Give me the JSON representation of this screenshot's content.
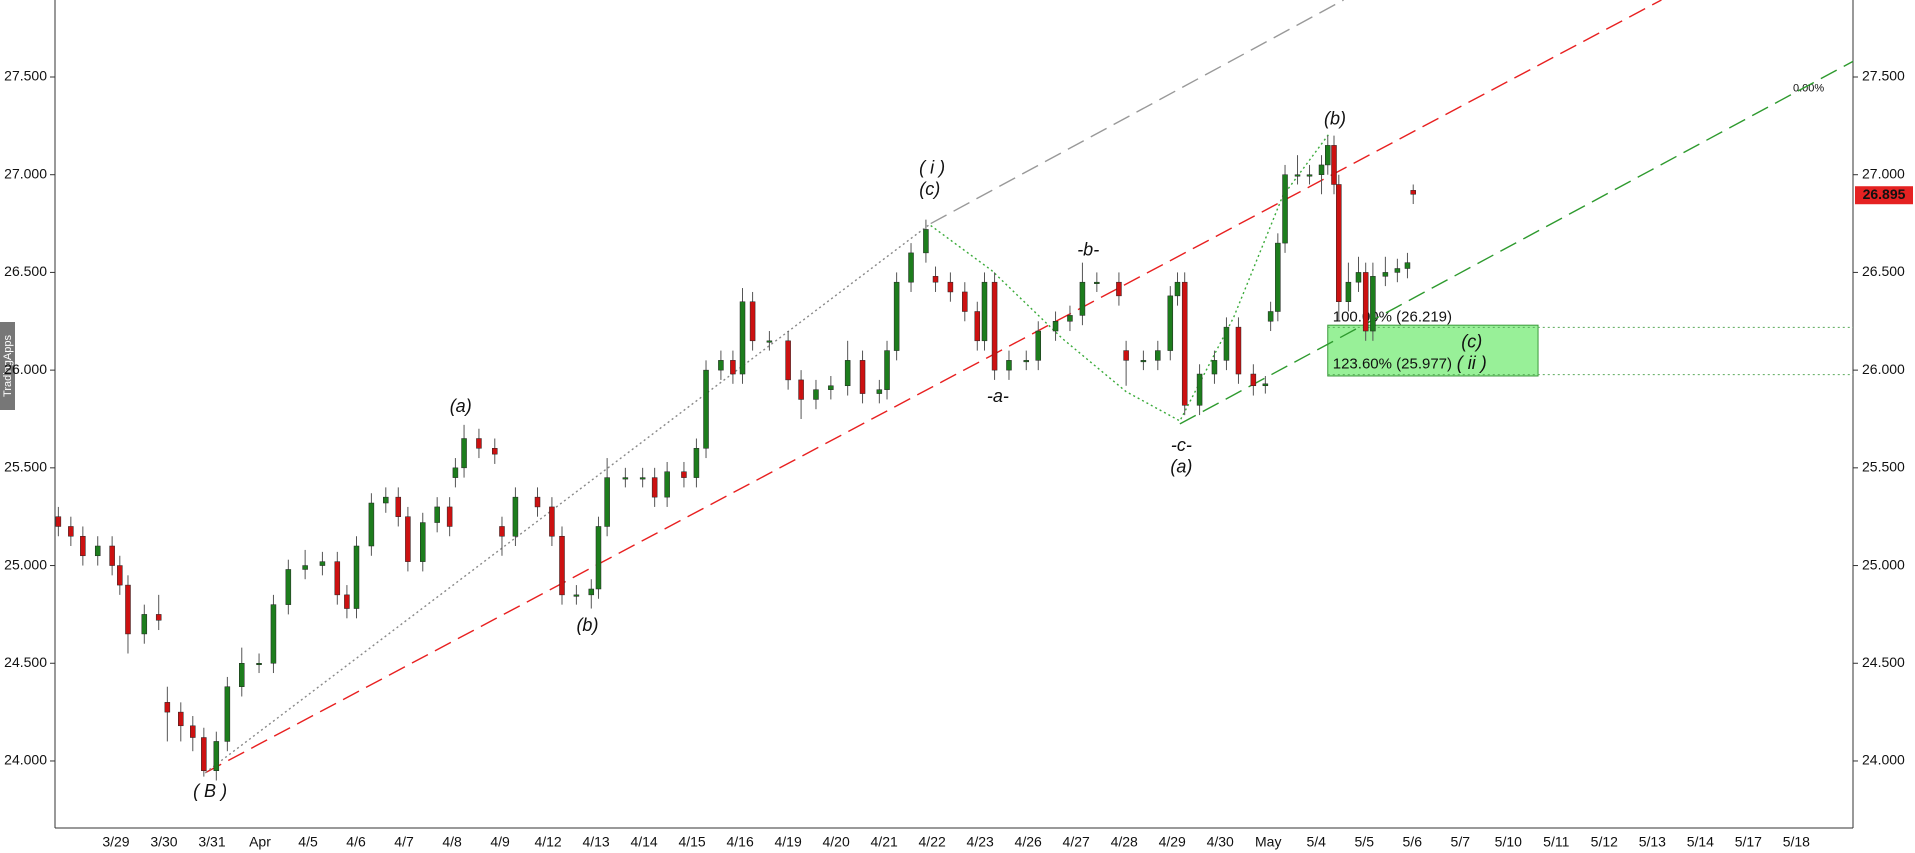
{
  "chart_data": {
    "type": "candlestick",
    "watermark": "TradingApps",
    "categories": [
      "3/29",
      "3/30",
      "3/31",
      "Apr",
      "4/5",
      "4/6",
      "4/7",
      "4/8",
      "4/9",
      "4/12",
      "4/13",
      "4/14",
      "4/15",
      "4/16",
      "4/19",
      "4/20",
      "4/21",
      "4/22",
      "4/23",
      "4/26",
      "4/27",
      "4/28",
      "4/29",
      "4/30",
      "May",
      "5/4",
      "5/5",
      "5/6",
      "5/7",
      "5/10",
      "5/11",
      "5/12",
      "5/13",
      "5/14",
      "5/17",
      "5/18"
    ],
    "xlim": [
      -1.27,
      36.18
    ],
    "ylim": [
      23.657,
      27.894
    ],
    "yticks": [
      {
        "value": 24,
        "label": "24.000"
      },
      {
        "value": 24.5,
        "label": "24.500"
      },
      {
        "value": 25,
        "label": "25.000"
      },
      {
        "value": 25.5,
        "label": "25.500"
      },
      {
        "value": 26,
        "label": "26.000"
      },
      {
        "value": 26.5,
        "label": "26.500"
      },
      {
        "value": 27,
        "label": "27.000"
      },
      {
        "value": 27.5,
        "label": "27.500"
      }
    ],
    "candles": {
      "up_color": "#1d7d1d",
      "down_color": "#cc1111",
      "wick_color": "#555555",
      "x": [
        -1.2,
        -0.94,
        -0.69,
        -0.38,
        -0.08,
        0.08,
        0.25,
        0.59,
        0.89,
        1.07,
        1.35,
        1.6,
        1.83,
        2.09,
        2.32,
        2.62,
        2.98,
        3.28,
        3.59,
        3.94,
        4.3,
        4.61,
        4.81,
        5.01,
        5.32,
        5.62,
        5.88,
        6.08,
        6.39,
        6.69,
        6.95,
        7.07,
        7.25,
        7.56,
        7.89,
        8.04,
        8.32,
        8.78,
        9.08,
        9.29,
        9.59,
        9.9,
        10.05,
        10.23,
        10.61,
        10.97,
        11.22,
        11.48,
        11.83,
        12.09,
        12.29,
        12.6,
        12.85,
        13.05,
        13.26,
        13.61,
        14.0,
        14.27,
        14.58,
        14.89,
        15.24,
        15.55,
        15.9,
        16.06,
        16.26,
        16.56,
        16.87,
        17.07,
        17.38,
        17.68,
        17.94,
        18.09,
        18.3,
        18.6,
        18.96,
        19.21,
        19.57,
        19.87,
        20.13,
        20.43,
        20.89,
        21.04,
        21.4,
        21.7,
        21.96,
        22.11,
        22.26,
        22.57,
        22.88,
        23.13,
        23.38,
        23.69,
        23.94,
        24.05,
        24.2,
        24.35,
        24.61,
        24.86,
        25.11,
        25.24,
        25.37,
        25.47,
        25.67,
        25.88,
        26.03,
        26.18,
        26.44,
        26.69,
        26.9,
        27.02
      ],
      "open": [
        25.25,
        25.2,
        25.15,
        25.05,
        25.1,
        25.0,
        24.9,
        24.65,
        24.75,
        24.3,
        24.25,
        24.18,
        24.12,
        23.95,
        24.1,
        24.38,
        24.5,
        24.5,
        24.8,
        24.98,
        25.0,
        25.02,
        24.85,
        24.78,
        25.1,
        25.32,
        25.35,
        25.25,
        25.02,
        25.22,
        25.3,
        25.45,
        25.5,
        25.65,
        25.6,
        25.2,
        25.15,
        25.35,
        25.3,
        25.15,
        24.85,
        24.85,
        24.88,
        25.2,
        25.45,
        25.45,
        25.45,
        25.35,
        25.48,
        25.45,
        25.6,
        26.0,
        26.05,
        25.98,
        26.35,
        26.15,
        26.15,
        25.95,
        25.85,
        25.9,
        25.92,
        26.05,
        25.88,
        25.9,
        26.1,
        26.45,
        26.6,
        26.48,
        26.45,
        26.4,
        26.3,
        26.15,
        26.45,
        26.0,
        26.05,
        26.05,
        26.2,
        26.25,
        26.28,
        26.45,
        26.45,
        26.1,
        26.05,
        26.05,
        26.1,
        26.38,
        26.45,
        25.82,
        25.98,
        26.05,
        26.22,
        25.98,
        25.92,
        26.25,
        26.3,
        26.65,
        27.0,
        27.0,
        27.0,
        27.05,
        27.15,
        26.95,
        26.35,
        26.45,
        26.5,
        26.2,
        26.48,
        26.5,
        26.52,
        26.92
      ],
      "high": [
        25.3,
        25.25,
        25.2,
        25.15,
        25.15,
        25.05,
        24.95,
        24.8,
        24.85,
        24.38,
        24.3,
        24.23,
        24.17,
        24.15,
        24.43,
        24.58,
        24.55,
        24.85,
        25.03,
        25.08,
        25.07,
        25.07,
        24.9,
        25.15,
        25.37,
        25.4,
        25.4,
        25.3,
        25.27,
        25.35,
        25.35,
        25.55,
        25.72,
        25.7,
        25.65,
        25.25,
        25.4,
        25.4,
        25.35,
        25.2,
        24.9,
        24.93,
        25.25,
        25.55,
        25.5,
        25.5,
        25.5,
        25.53,
        25.53,
        25.65,
        26.05,
        26.1,
        26.1,
        26.42,
        26.4,
        26.2,
        26.2,
        26.0,
        25.95,
        25.97,
        26.15,
        26.1,
        25.95,
        26.15,
        26.5,
        26.65,
        26.77,
        26.53,
        26.5,
        26.45,
        26.35,
        26.5,
        26.5,
        26.1,
        26.1,
        26.25,
        26.3,
        26.33,
        26.55,
        26.5,
        26.5,
        26.15,
        26.1,
        26.15,
        26.43,
        26.5,
        26.5,
        26.03,
        26.1,
        26.27,
        26.27,
        26.03,
        25.97,
        26.35,
        26.7,
        27.05,
        27.1,
        27.05,
        27.1,
        27.2,
        27.2,
        27.0,
        26.55,
        26.58,
        26.55,
        26.55,
        26.58,
        26.57,
        26.6,
        26.95
      ],
      "low": [
        25.15,
        25.1,
        25.0,
        25.0,
        24.95,
        24.85,
        24.55,
        24.6,
        24.67,
        24.1,
        24.1,
        24.05,
        23.92,
        23.9,
        24.05,
        24.33,
        24.45,
        24.45,
        24.75,
        24.93,
        24.95,
        24.8,
        24.73,
        24.73,
        25.05,
        25.27,
        25.2,
        24.97,
        24.97,
        25.17,
        25.15,
        25.4,
        25.45,
        25.55,
        25.52,
        25.05,
        25.1,
        25.25,
        25.1,
        24.8,
        24.8,
        24.78,
        24.83,
        25.15,
        25.4,
        25.4,
        25.3,
        25.3,
        25.4,
        25.4,
        25.55,
        25.95,
        25.93,
        25.93,
        26.1,
        26.1,
        25.9,
        25.75,
        25.8,
        25.85,
        25.87,
        25.83,
        25.83,
        25.85,
        26.05,
        26.4,
        26.55,
        26.4,
        26.35,
        26.25,
        26.1,
        26.1,
        25.95,
        25.95,
        26.0,
        26.0,
        26.15,
        26.2,
        26.23,
        26.4,
        26.33,
        25.92,
        26.0,
        26.0,
        26.05,
        26.33,
        25.77,
        25.77,
        25.93,
        26.0,
        25.93,
        25.87,
        25.88,
        26.2,
        26.25,
        26.6,
        26.95,
        26.95,
        26.9,
        27.0,
        26.9,
        26.25,
        26.3,
        26.4,
        26.15,
        26.15,
        26.43,
        26.45,
        26.47,
        26.85
      ],
      "close": [
        25.2,
        25.15,
        25.05,
        25.1,
        25.0,
        24.9,
        24.65,
        24.75,
        24.72,
        24.25,
        24.18,
        24.12,
        23.95,
        24.1,
        24.38,
        24.5,
        24.5,
        24.8,
        24.98,
        25.0,
        25.02,
        24.85,
        24.78,
        25.1,
        25.32,
        25.35,
        25.25,
        25.02,
        25.22,
        25.3,
        25.2,
        25.5,
        25.65,
        25.6,
        25.57,
        25.15,
        25.35,
        25.3,
        25.15,
        24.85,
        24.85,
        24.88,
        25.2,
        25.45,
        25.45,
        25.45,
        25.35,
        25.48,
        25.45,
        25.6,
        26.0,
        26.05,
        25.98,
        26.35,
        26.15,
        26.15,
        25.95,
        25.85,
        25.9,
        25.92,
        26.05,
        25.88,
        25.9,
        26.1,
        26.45,
        26.6,
        26.72,
        26.45,
        26.4,
        26.3,
        26.15,
        26.45,
        26.0,
        26.05,
        26.05,
        26.2,
        26.25,
        26.28,
        26.45,
        26.45,
        26.38,
        26.05,
        26.05,
        26.1,
        26.38,
        26.45,
        25.82,
        25.98,
        26.05,
        26.22,
        25.98,
        25.92,
        25.93,
        26.3,
        26.65,
        27.0,
        27.0,
        27.0,
        27.05,
        27.15,
        26.95,
        26.35,
        26.45,
        26.5,
        26.2,
        26.48,
        26.5,
        26.52,
        26.55,
        26.9
      ]
    },
    "trendlines": [
      {
        "color": "#999999",
        "style": "long-dash",
        "points": [
          [
            16.97,
            26.75
          ],
          [
            25.57,
            27.894
          ]
        ]
      },
      {
        "color": "#e82020",
        "style": "long-dash",
        "points": [
          [
            1.86,
            23.94
          ],
          [
            32.19,
            27.894
          ]
        ]
      },
      {
        "color": "#2e9a2e",
        "style": "long-dash",
        "points": [
          [
            22.16,
            25.725
          ],
          [
            36.18,
            27.58
          ]
        ]
      },
      {
        "color": "#888888",
        "style": "dotted",
        "points": [
          [
            1.86,
            23.94
          ],
          [
            16.97,
            26.75
          ]
        ]
      },
      {
        "color": "#3aaa3a",
        "style": "dotted",
        "points": [
          [
            16.97,
            26.74
          ],
          [
            18.24,
            26.51
          ],
          [
            19.72,
            26.16
          ],
          [
            21.04,
            25.89
          ],
          [
            22.16,
            25.74
          ],
          [
            23.28,
            26.27
          ],
          [
            24.3,
            26.89
          ],
          [
            25.27,
            27.21
          ]
        ]
      }
    ],
    "fib_zone": {
      "x": [
        25.24,
        29.62
      ],
      "y": [
        25.97,
        26.23
      ],
      "color": "#98f098"
    },
    "fib_levels": [
      {
        "value": 26.219,
        "label": "100.00% (26.219)",
        "color": "#8fcc8f"
      },
      {
        "value": 25.977,
        "label": "123.60% (25.977)",
        "color": "#3e9e3e"
      }
    ],
    "fib_zero": {
      "value": 27.44,
      "label": "0.00%",
      "color": "#2e8a2e"
    },
    "annotation_color": "#0a14e6",
    "annotations": [
      {
        "text": "( B )",
        "x": 1.96,
        "y": 23.84
      },
      {
        "text": "(a)",
        "x": 7.18,
        "y": 25.81
      },
      {
        "text": "(b)",
        "x": 9.82,
        "y": 24.69
      },
      {
        "text": "( i )",
        "x": 17.0,
        "y": 27.03
      },
      {
        "text": "(c)",
        "x": 16.95,
        "y": 26.92
      },
      {
        "text": "-b-",
        "x": 20.25,
        "y": 26.61
      },
      {
        "text": "-a-",
        "x": 18.37,
        "y": 25.86
      },
      {
        "text": "-c-",
        "x": 22.19,
        "y": 25.61
      },
      {
        "text": "(a)",
        "x": 22.19,
        "y": 25.5
      },
      {
        "text": "(b)",
        "x": 25.39,
        "y": 27.28
      },
      {
        "text": "(c)",
        "x": 28.24,
        "y": 26.14
      },
      {
        "text": "( ii )",
        "x": 28.24,
        "y": 26.03
      }
    ],
    "last_price": {
      "value": 26.895,
      "label": "26.895",
      "color": "#e52222"
    }
  }
}
